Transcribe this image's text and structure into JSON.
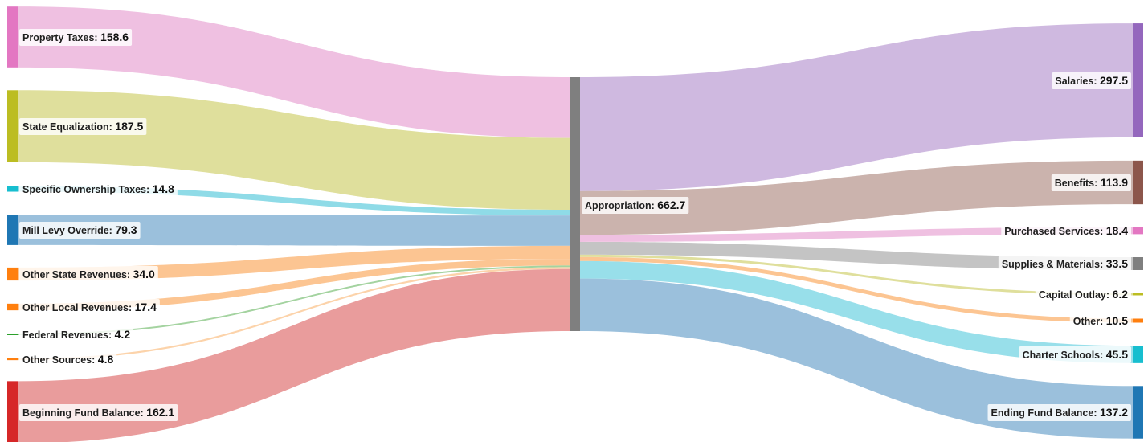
{
  "chart_data": {
    "type": "sankey",
    "center": {
      "name": "Appropriation",
      "value": 662.7,
      "color": "#7f7f7f"
    },
    "sources": [
      {
        "name": "Property Taxes",
        "value": 158.6,
        "color": "#e377c2",
        "link_color": "#efc0e1"
      },
      {
        "name": "State Equalization",
        "value": 187.5,
        "color": "#bcbd22",
        "link_color": "#dfdf9c"
      },
      {
        "name": "Specific Ownership Taxes",
        "value": 14.8,
        "color": "#17becf",
        "link_color": "#8fdbe7"
      },
      {
        "name": "Mill Levy Override",
        "value": 79.3,
        "color": "#1f77b4",
        "link_color": "#9bc0dc"
      },
      {
        "name": "Other State Revenues",
        "value": 34.0,
        "color": "#ff7f0e",
        "link_color": "#fcc592"
      },
      {
        "name": "Other Local Revenues",
        "value": 17.4,
        "color": "#ff7f0e",
        "link_color": "#fcc592"
      },
      {
        "name": "Federal Revenues",
        "value": 4.2,
        "color": "#2ca02c",
        "link_color": "#a4d3a0"
      },
      {
        "name": "Other Sources",
        "value": 4.8,
        "color": "#ff7f0e",
        "link_color": "#fcd3aa"
      },
      {
        "name": "Beginning Fund Balance",
        "value": 162.1,
        "color": "#d62728",
        "link_color": "#e99c9c"
      }
    ],
    "targets": [
      {
        "name": "Salaries",
        "value": 297.5,
        "color": "#9467bd",
        "link_color": "#cfb9e0"
      },
      {
        "name": "Benefits",
        "value": 113.9,
        "color": "#8c564b",
        "link_color": "#cbb3ad"
      },
      {
        "name": "Purchased Services",
        "value": 18.4,
        "color": "#e377c2",
        "link_color": "#efc0e1"
      },
      {
        "name": "Supplies & Materials",
        "value": 33.5,
        "color": "#7f7f7f",
        "link_color": "#c4c4c4"
      },
      {
        "name": "Capital Outlay",
        "value": 6.2,
        "color": "#bcbd22",
        "link_color": "#dfdf9c"
      },
      {
        "name": "Other",
        "value": 10.5,
        "color": "#ff7f0e",
        "link_color": "#fcc592"
      },
      {
        "name": "Charter Schools",
        "value": 45.5,
        "color": "#17becf",
        "link_color": "#98dfea"
      },
      {
        "name": "Ending Fund Balance",
        "value": 137.2,
        "color": "#1f77b4",
        "link_color": "#9bc0dc"
      }
    ]
  }
}
